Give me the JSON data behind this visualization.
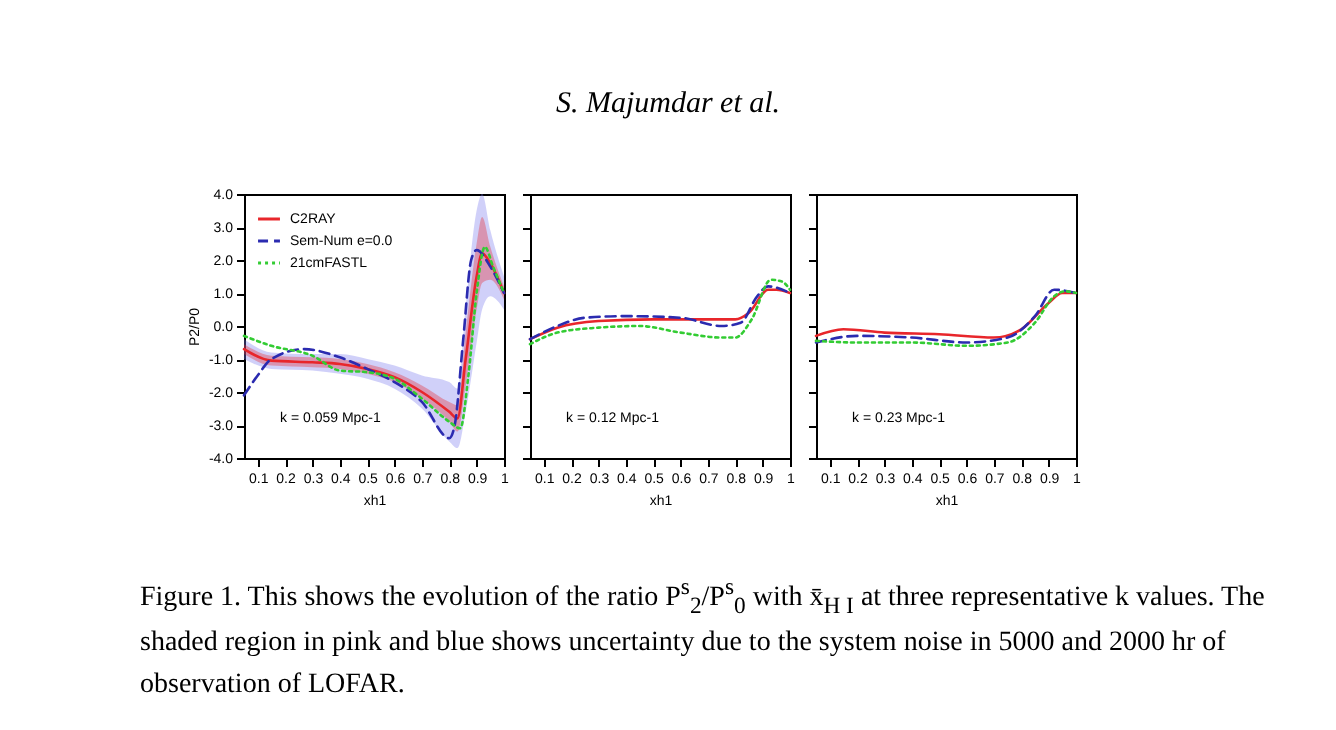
{
  "chart_data": [
    {
      "type": "line",
      "xlabel": "xh1",
      "ylabel": "P2/P0",
      "annotations": [
        "k = 0.059 Mpc-1",
        "S. Majumdar et al.",
        "Figure 1. This shows the evolution of the ratio P$^{s}$$_{2}$/P$^{s}$$_{0}$ with x̄$_{H I}$ at three representative k values. The shaded region in pink and blue shows uncertainty due to the system noise in 5000 and 2000 hr of observation of LOFAR."
      ],
      "xlim": [
        0.05,
        1
      ],
      "xticks": [
        0.1,
        0.2,
        0.3,
        0.4,
        0.5,
        0.6,
        0.7,
        0.8,
        0.9,
        1
      ],
      "ylim": [
        -4,
        4
      ],
      "yticks": [
        {
          "value": -4,
          "label": "-4.0"
        },
        {
          "value": -3,
          "label": "-3.0"
        },
        {
          "value": -2,
          "label": "-2.0"
        },
        {
          "value": -1,
          "label": "-1.0"
        },
        {
          "value": 0,
          "label": "0.0"
        },
        {
          "value": 1,
          "label": "1.0"
        },
        {
          "value": 2,
          "label": "2.0"
        },
        {
          "value": 3,
          "label": "3.0"
        },
        {
          "value": 4,
          "label": "4.0"
        }
      ],
      "legend": "top left",
      "series": [
        {
          "color": "#7777ee",
          "x": [
            0.05,
            0.15,
            0.3,
            0.4,
            0.5,
            0.6,
            0.7,
            0.8,
            0.83,
            0.86,
            0.9,
            0.92,
            0.95,
            1.0
          ],
          "values": [
            null,
            null,
            null,
            null,
            null,
            null,
            null,
            null,
            null,
            null,
            null,
            null,
            null,
            null
          ],
          "lower": [
            -1.0,
            -1.3,
            -1.35,
            -1.45,
            -1.6,
            -1.9,
            -2.5,
            -3.5,
            -3.7,
            -2.6,
            -0.5,
            0.5,
            0.9,
            0.5
          ],
          "upper": [
            -0.4,
            -0.8,
            -0.85,
            -0.85,
            -1.0,
            -1.2,
            -1.5,
            -1.7,
            -1.9,
            0.6,
            3.5,
            4.0,
            2.9,
            1.5
          ]
        },
        {
          "name": "C2RAY",
          "color": "#e8262b",
          "line_style": "solid",
          "x": [
            0.05,
            0.15,
            0.3,
            0.4,
            0.5,
            0.6,
            0.7,
            0.8,
            0.83,
            0.86,
            0.9,
            0.92,
            0.95,
            1.0
          ],
          "values": [
            -0.7,
            -1.05,
            -1.1,
            -1.15,
            -1.3,
            -1.55,
            -2.0,
            -2.6,
            -2.8,
            -1.0,
            1.5,
            2.2,
            1.9,
            1.0
          ],
          "lower": [
            -0.85,
            -1.2,
            -1.25,
            -1.3,
            -1.45,
            -1.7,
            -2.2,
            -2.9,
            -3.2,
            -1.8,
            0.5,
            1.3,
            1.4,
            0.8
          ],
          "upper": [
            -0.55,
            -0.9,
            -0.95,
            -1.0,
            -1.15,
            -1.4,
            -1.8,
            -2.3,
            -2.4,
            -0.2,
            2.5,
            3.3,
            2.4,
            1.2
          ]
        },
        {
          "name": "Sem-Num e=0.0",
          "color": "#2b2bb0",
          "line_style": "dashed",
          "x": [
            0.05,
            0.1,
            0.15,
            0.27,
            0.4,
            0.5,
            0.6,
            0.7,
            0.8,
            0.82,
            0.85,
            0.88,
            0.9,
            0.95,
            1.0
          ],
          "values": [
            -2.1,
            -1.5,
            -1.0,
            -0.7,
            -0.95,
            -1.3,
            -1.7,
            -2.3,
            -3.4,
            -3.0,
            -0.5,
            2.0,
            2.3,
            1.8,
            1.0
          ]
        },
        {
          "name": "21cmFASTL",
          "color": "#33cc33",
          "line_style": "dotted",
          "x": [
            0.05,
            0.15,
            0.3,
            0.4,
            0.5,
            0.6,
            0.7,
            0.8,
            0.84,
            0.87,
            0.9,
            0.93,
            0.96,
            1.0
          ],
          "values": [
            -0.3,
            -0.6,
            -0.9,
            -1.35,
            -1.4,
            -1.6,
            -2.2,
            -2.9,
            -3.1,
            -1.5,
            1.0,
            2.4,
            1.8,
            1.0
          ]
        }
      ]
    },
    {
      "type": "line",
      "xlabel": "xh1",
      "annotations": [
        "k = 0.12 Mpc-1"
      ],
      "tick_labels": "x",
      "xlim": [
        0.05,
        1
      ],
      "xticks": [
        0.1,
        0.2,
        0.3,
        0.4,
        0.5,
        0.6,
        0.7,
        0.8,
        0.9,
        1
      ],
      "ylim": [
        -4,
        4
      ],
      "yticks": [
        -4,
        -3,
        -2,
        -1,
        0,
        1,
        2,
        3,
        4
      ],
      "series": [
        {
          "color": "#e8262b",
          "line_style": "solid",
          "x": [
            0.05,
            0.15,
            0.3,
            0.5,
            0.7,
            0.8,
            0.85,
            0.92,
            0.95,
            1.0
          ],
          "values": [
            -0.4,
            -0.05,
            0.15,
            0.2,
            0.2,
            0.2,
            0.4,
            1.1,
            1.1,
            1.0
          ]
        },
        {
          "color": "#2b2bb0",
          "line_style": "dashed",
          "x": [
            0.05,
            0.15,
            0.25,
            0.4,
            0.6,
            0.75,
            0.82,
            0.88,
            0.92,
            1.0
          ],
          "values": [
            -0.4,
            0.0,
            0.25,
            0.3,
            0.25,
            0.0,
            0.1,
            0.9,
            1.2,
            1.0
          ]
        },
        {
          "color": "#33cc33",
          "line_style": "dotted",
          "x": [
            0.05,
            0.15,
            0.3,
            0.45,
            0.6,
            0.75,
            0.8,
            0.86,
            0.93,
            0.97,
            1.0
          ],
          "values": [
            -0.55,
            -0.2,
            -0.05,
            0.0,
            -0.2,
            -0.35,
            -0.35,
            0.2,
            1.4,
            1.35,
            1.1
          ]
        }
      ]
    },
    {
      "type": "line",
      "xlabel": "xh1",
      "annotations": [
        "k = 0.23 Mpc-1"
      ],
      "tick_labels": "x",
      "xlim": [
        0.05,
        1
      ],
      "xticks": [
        0.1,
        0.2,
        0.3,
        0.4,
        0.5,
        0.6,
        0.7,
        0.8,
        0.9,
        1
      ],
      "ylim": [
        -4,
        4
      ],
      "yticks": [
        -4,
        -3,
        -2,
        -1,
        0,
        1,
        2,
        3,
        4
      ],
      "series": [
        {
          "color": "#e8262b",
          "line_style": "solid",
          "x": [
            0.05,
            0.15,
            0.3,
            0.5,
            0.7,
            0.8,
            0.9,
            0.95,
            1.0
          ],
          "values": [
            -0.3,
            -0.1,
            -0.2,
            -0.25,
            -0.35,
            -0.1,
            0.7,
            1.0,
            1.0
          ]
        },
        {
          "color": "#2b2bb0",
          "line_style": "dashed",
          "x": [
            0.05,
            0.2,
            0.4,
            0.6,
            0.75,
            0.85,
            0.92,
            1.0
          ],
          "values": [
            -0.5,
            -0.3,
            -0.35,
            -0.5,
            -0.35,
            0.3,
            1.1,
            1.0
          ]
        },
        {
          "color": "#33cc33",
          "line_style": "dotted",
          "x": [
            0.05,
            0.2,
            0.4,
            0.6,
            0.75,
            0.85,
            0.92,
            0.96,
            1.0
          ],
          "values": [
            -0.45,
            -0.5,
            -0.5,
            -0.6,
            -0.5,
            0.1,
            0.9,
            1.05,
            1.0
          ]
        }
      ]
    }
  ]
}
